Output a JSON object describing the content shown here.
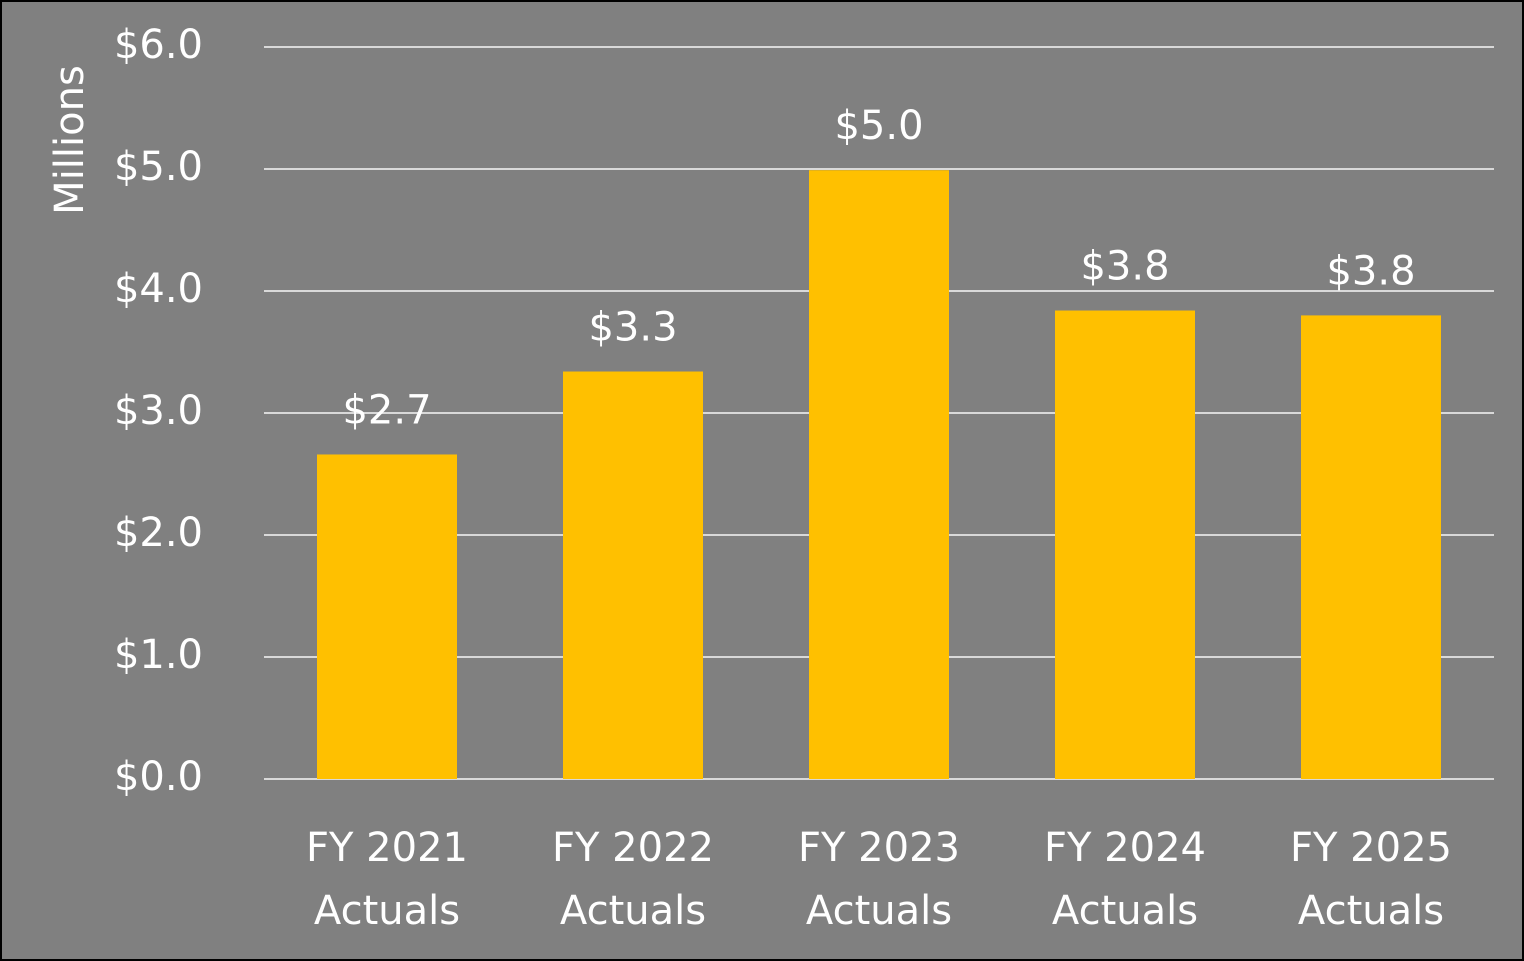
{
  "chart_data": {
    "type": "bar",
    "y_axis_label": "Millions",
    "categories": [
      "FY 2021\nActuals",
      "FY 2022\nActuals",
      "FY 2023\nActuals",
      "FY 2024\nActuals",
      "FY 2025\nActuals"
    ],
    "values": [
      2.66,
      3.34,
      4.99,
      3.84,
      3.8
    ],
    "value_labels": [
      "$2.7",
      "$3.3",
      "$5.0",
      "$3.8",
      "$3.8"
    ],
    "color": "#ffc000",
    "ylim": [
      0,
      6
    ],
    "yticks": [
      {
        "value": 0,
        "label": "$0.0"
      },
      {
        "value": 1,
        "label": "$1.0"
      },
      {
        "value": 2,
        "label": "$2.0"
      },
      {
        "value": 3,
        "label": "$3.0"
      },
      {
        "value": 4,
        "label": "$4.0"
      },
      {
        "value": 5,
        "label": "$5.0"
      },
      {
        "value": 6,
        "label": "$6.0"
      }
    ],
    "grid": true
  }
}
